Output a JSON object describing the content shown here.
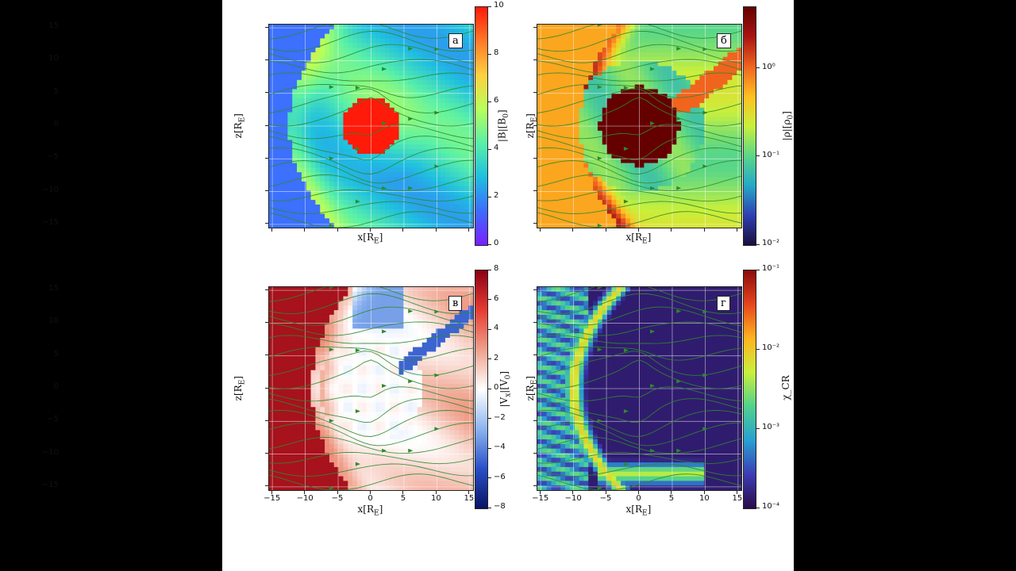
{
  "chart_data": [
    {
      "type": "heatmap",
      "panel_label": "а",
      "xlabel": "x[R_E]",
      "ylabel": "z[R_E]",
      "colorbar_label": "|B|[B_0]",
      "xlim": [
        -15.5,
        15.5
      ],
      "ylim": [
        -15.5,
        15.5
      ],
      "x_ticks": [],
      "y_ticks": [
        "15",
        "10",
        "5",
        "0",
        "−5",
        "−10",
        "−15"
      ],
      "colorbar_scale": "linear",
      "colorbar_range": [
        0,
        10
      ],
      "colorbar_ticks": [
        "10",
        "8",
        "6",
        "4",
        "2",
        "0"
      ],
      "colormap": [
        "#7a1fff",
        "#3d6cff",
        "#1fbfe0",
        "#59f0a8",
        "#b8ff5a",
        "#ffd040",
        "#ff7a2a",
        "#ff1a0a"
      ],
      "grid": true,
      "streamline_color": "#2d8a2d"
    },
    {
      "type": "heatmap",
      "panel_label": "б",
      "xlabel": "x[R_E]",
      "ylabel": "z[R_E]",
      "colorbar_label": "|ρ|[ρ_0]",
      "xlim": [
        -15.5,
        15.5
      ],
      "ylim": [
        -15.5,
        15.5
      ],
      "x_ticks": [],
      "y_ticks": [],
      "colorbar_scale": "log",
      "colorbar_range": [
        0.01,
        5
      ],
      "colorbar_ticks": [
        "10⁰",
        "10⁻¹",
        "10⁻²"
      ],
      "colormap": [
        "#1a0f3c",
        "#2f3fb4",
        "#25a8c8",
        "#5ad787",
        "#c8f03c",
        "#ffc020",
        "#f0641e",
        "#aa1414",
        "#640000"
      ],
      "grid": true,
      "streamline_color": "#2d8a2d"
    },
    {
      "type": "heatmap",
      "panel_label": "в",
      "xlabel": "x[R_E]",
      "ylabel": "z[R_E]",
      "colorbar_label": "|V_x|[V_0]",
      "xlim": [
        -15.5,
        15.5
      ],
      "ylim": [
        -15.5,
        15.5
      ],
      "x_ticks": [
        "−15",
        "−10",
        "−5",
        "0",
        "5",
        "10",
        "15"
      ],
      "y_ticks": [
        "15",
        "10",
        "5",
        "0",
        "−5",
        "−10",
        "−15"
      ],
      "colorbar_scale": "linear",
      "colorbar_range": [
        -8,
        8
      ],
      "colorbar_ticks": [
        "8",
        "6",
        "4",
        "2",
        "0",
        "−2",
        "−4",
        "−6",
        "−8"
      ],
      "colormap": [
        "#0a1464",
        "#2850c8",
        "#8cb4f0",
        "#ffffff",
        "#f0a08c",
        "#e63c32",
        "#8c0014"
      ],
      "grid": true,
      "streamline_color": "#2d8a2d"
    },
    {
      "type": "heatmap",
      "panel_label": "г",
      "xlabel": "x[R_E]",
      "ylabel": "z[R_E]",
      "colorbar_label": "χ_CR",
      "xlim": [
        -15.5,
        15.5
      ],
      "ylim": [
        -15.5,
        15.5
      ],
      "x_ticks": [
        "−15",
        "−10",
        "−5",
        "0",
        "5",
        "10",
        "15"
      ],
      "y_ticks": [],
      "colorbar_scale": "log",
      "colorbar_range": [
        0.0001,
        0.1
      ],
      "colorbar_ticks": [
        "10⁻¹",
        "10⁻²",
        "10⁻³",
        "10⁻⁴"
      ],
      "colormap": [
        "#2a0a4a",
        "#3c3cb4",
        "#28a0d2",
        "#50d28c",
        "#c8f03c",
        "#ffb41e",
        "#e6461e",
        "#8c0a0a"
      ],
      "grid": true,
      "streamline_color": "#2d8a2d"
    }
  ]
}
